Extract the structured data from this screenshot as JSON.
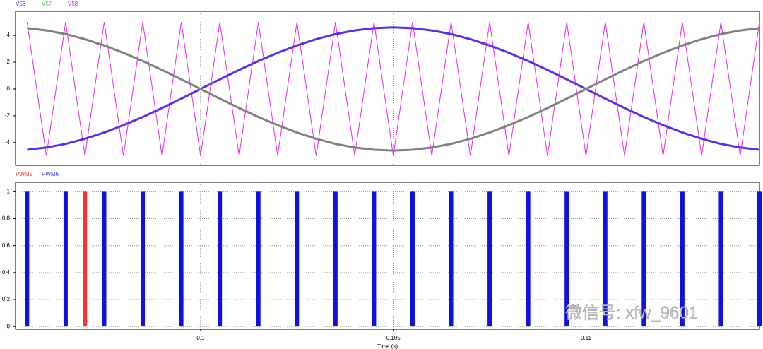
{
  "chart_data": [
    {
      "type": "line",
      "grid": true,
      "x": [
        0.0955,
        0.096,
        0.0965,
        0.097,
        0.0975,
        0.098,
        0.0985,
        0.099,
        0.0995,
        0.1,
        0.1005,
        0.101,
        0.1015,
        0.102,
        0.1025,
        0.103,
        0.1035,
        0.104,
        0.1045,
        0.105,
        0.1055,
        0.106,
        0.1065,
        0.107,
        0.1075,
        0.108,
        0.1085,
        0.109,
        0.1095,
        0.11,
        0.1105,
        0.111,
        0.1115,
        0.112,
        0.1125,
        0.113,
        0.1135,
        0.114,
        0.1145
      ],
      "xlim": [
        0.0952,
        0.1145
      ],
      "ylim": [
        -5.7,
        5.8
      ],
      "yticks": [
        -4,
        -2,
        0,
        2,
        4
      ],
      "series": [
        {
          "name": "V56",
          "color": "#5a2ef0",
          "legend_color": "#3a3aff",
          "values": [
            -4.54,
            -4.37,
            -4.1,
            -3.72,
            -3.25,
            -2.7,
            -2.09,
            -1.42,
            -0.72,
            0,
            0.72,
            1.42,
            2.09,
            2.7,
            3.25,
            3.72,
            4.1,
            4.37,
            4.54,
            4.6,
            4.54,
            4.37,
            4.1,
            3.72,
            3.25,
            2.7,
            2.09,
            1.42,
            0.72,
            0,
            -0.72,
            -1.42,
            -2.09,
            -2.7,
            -3.25,
            -3.72,
            -4.1,
            -4.37,
            -4.54
          ]
        },
        {
          "name": "V57",
          "color": "#808080",
          "legend_color": "#33dd33",
          "values": [
            4.54,
            4.37,
            4.1,
            3.72,
            3.25,
            2.7,
            2.09,
            1.42,
            0.72,
            0,
            -0.72,
            -1.42,
            -2.09,
            -2.7,
            -3.25,
            -3.72,
            -4.1,
            -4.37,
            -4.54,
            -4.6,
            -4.54,
            -4.37,
            -4.1,
            -3.72,
            -3.25,
            -2.7,
            -2.09,
            -1.42,
            -0.72,
            0,
            0.72,
            1.42,
            2.09,
            2.7,
            3.25,
            3.72,
            4.1,
            4.37,
            4.54
          ]
        },
        {
          "name": "V58",
          "color": "#ee22ee",
          "legend_color": "#ee22ee",
          "values": [
            5,
            -5,
            5,
            -5,
            5,
            -5,
            5,
            -5,
            5,
            -5,
            5,
            -5,
            5,
            -5,
            5,
            -5,
            5,
            -5,
            5,
            -5,
            5,
            -5,
            5,
            -5,
            5,
            -5,
            5,
            -5,
            5,
            -5,
            5,
            -5,
            5,
            -5,
            5,
            -5,
            5,
            -5,
            5
          ]
        }
      ]
    },
    {
      "type": "pulse",
      "grid": true,
      "x_label": "Time (s)",
      "x": [
        0.0955,
        0.096,
        0.0965,
        0.097,
        0.0975,
        0.098,
        0.0985,
        0.099,
        0.0995,
        0.1,
        0.1005,
        0.101,
        0.1015,
        0.102,
        0.1025,
        0.103,
        0.1035,
        0.104,
        0.1045,
        0.105,
        0.1055,
        0.106,
        0.1065,
        0.107,
        0.1075,
        0.108,
        0.1085,
        0.109,
        0.1095,
        0.11,
        0.1105,
        0.111,
        0.1115,
        0.112,
        0.1125,
        0.113,
        0.1135,
        0.114,
        0.1145
      ],
      "xlim": [
        0.0952,
        0.1145
      ],
      "xticks": [
        0.1,
        0.105,
        0.11
      ],
      "ylim": [
        -0.02,
        1.07
      ],
      "yticks": [
        0,
        0.2,
        0.4,
        0.6,
        0.8,
        1
      ],
      "series": [
        {
          "name": "PWM5",
          "color": "#ff3030",
          "legend_color": "#ff3030",
          "values": [
            0,
            0,
            0,
            1,
            0,
            0,
            0,
            0,
            0,
            0,
            0,
            0,
            0,
            0,
            0,
            0,
            0,
            0,
            0,
            0,
            0,
            0,
            0,
            0,
            0,
            0,
            0,
            0,
            0,
            0,
            0,
            0,
            0,
            0,
            0,
            0,
            0,
            0,
            0
          ]
        },
        {
          "name": "PWM6",
          "color": "#1010e0",
          "legend_color": "#3a3aff",
          "values": [
            1,
            0,
            1,
            0,
            1,
            0,
            1,
            0,
            1,
            0,
            1,
            0,
            1,
            0,
            1,
            0,
            1,
            0,
            1,
            0,
            1,
            0,
            1,
            0,
            1,
            0,
            1,
            0,
            1,
            0,
            1,
            0,
            1,
            0,
            1,
            0,
            1,
            0,
            1
          ]
        }
      ]
    }
  ],
  "watermark": "微信号: xfw_9601"
}
